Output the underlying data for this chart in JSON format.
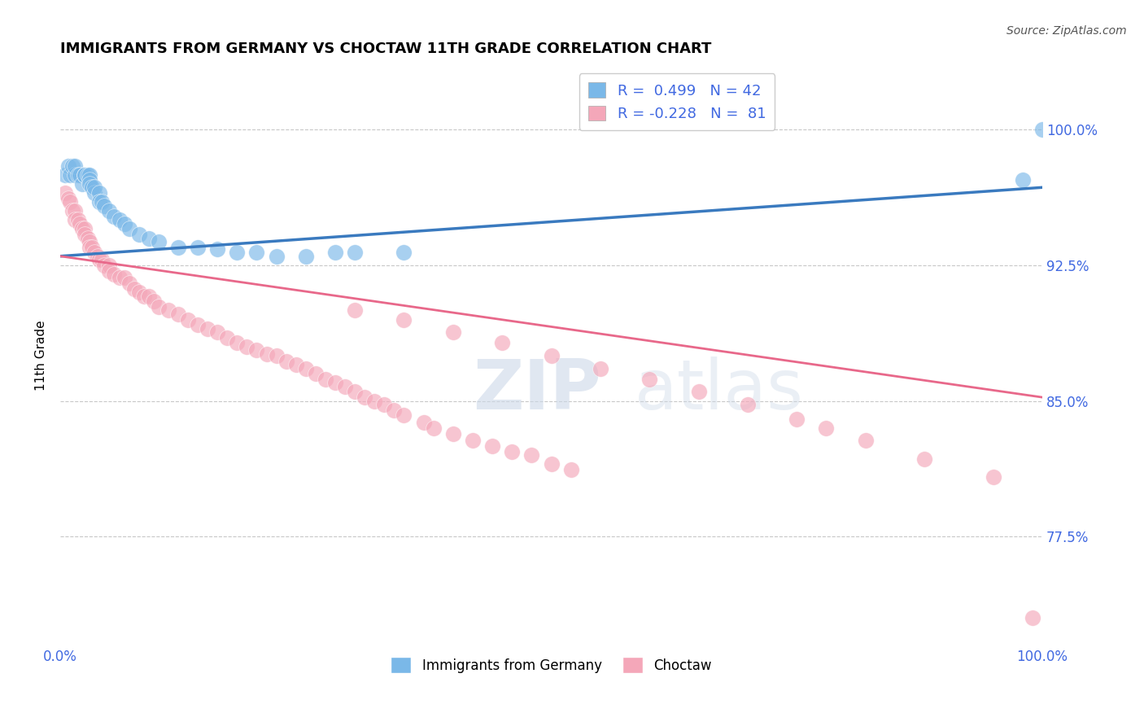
{
  "title": "IMMIGRANTS FROM GERMANY VS CHOCTAW 11TH GRADE CORRELATION CHART",
  "source_text": "Source: ZipAtlas.com",
  "ylabel": "11th Grade",
  "watermark_zip": "ZIP",
  "watermark_atlas": "atlas",
  "xlim": [
    0.0,
    1.0
  ],
  "ylim": [
    0.715,
    1.035
  ],
  "yticks": [
    0.775,
    0.85,
    0.925,
    1.0
  ],
  "ytick_labels": [
    "77.5%",
    "85.0%",
    "92.5%",
    "100.0%"
  ],
  "xtick_labels": [
    "0.0%",
    "100.0%"
  ],
  "xticks": [
    0.0,
    1.0
  ],
  "blue_R": 0.499,
  "blue_N": 42,
  "pink_R": -0.228,
  "pink_N": 81,
  "blue_color": "#7ab8e8",
  "pink_color": "#f4a7b9",
  "blue_line_color": "#3a7abf",
  "pink_line_color": "#e8688a",
  "legend_label_blue": "Immigrants from Germany",
  "legend_label_pink": "Choctaw",
  "title_fontsize": 13,
  "axis_color": "#4169e1",
  "grid_color": "#c8c8c8",
  "background_color": "#ffffff",
  "blue_line_x0": 0.0,
  "blue_line_x1": 1.0,
  "blue_line_y0": 0.93,
  "blue_line_y1": 0.968,
  "pink_line_x0": 0.0,
  "pink_line_x1": 1.0,
  "pink_line_y0": 0.93,
  "pink_line_y1": 0.852,
  "blue_scatter_x": [
    0.005,
    0.008,
    0.01,
    0.012,
    0.015,
    0.015,
    0.018,
    0.02,
    0.022,
    0.025,
    0.025,
    0.028,
    0.03,
    0.03,
    0.03,
    0.032,
    0.035,
    0.035,
    0.04,
    0.04,
    0.042,
    0.045,
    0.05,
    0.055,
    0.06,
    0.065,
    0.07,
    0.08,
    0.09,
    0.1,
    0.12,
    0.14,
    0.16,
    0.18,
    0.2,
    0.22,
    0.25,
    0.28,
    0.3,
    0.35,
    0.98,
    1.0
  ],
  "blue_scatter_y": [
    0.975,
    0.98,
    0.975,
    0.98,
    0.975,
    0.98,
    0.975,
    0.975,
    0.97,
    0.975,
    0.975,
    0.975,
    0.975,
    0.972,
    0.97,
    0.968,
    0.965,
    0.968,
    0.965,
    0.96,
    0.96,
    0.958,
    0.955,
    0.952,
    0.95,
    0.948,
    0.945,
    0.942,
    0.94,
    0.938,
    0.935,
    0.935,
    0.934,
    0.932,
    0.932,
    0.93,
    0.93,
    0.932,
    0.932,
    0.932,
    0.972,
    1.0
  ],
  "pink_scatter_x": [
    0.005,
    0.008,
    0.01,
    0.012,
    0.015,
    0.015,
    0.018,
    0.02,
    0.022,
    0.025,
    0.025,
    0.028,
    0.03,
    0.03,
    0.032,
    0.035,
    0.038,
    0.04,
    0.042,
    0.045,
    0.05,
    0.05,
    0.055,
    0.06,
    0.065,
    0.07,
    0.075,
    0.08,
    0.085,
    0.09,
    0.095,
    0.1,
    0.11,
    0.12,
    0.13,
    0.14,
    0.15,
    0.16,
    0.17,
    0.18,
    0.19,
    0.2,
    0.21,
    0.22,
    0.23,
    0.24,
    0.25,
    0.26,
    0.27,
    0.28,
    0.29,
    0.3,
    0.31,
    0.32,
    0.33,
    0.34,
    0.35,
    0.37,
    0.38,
    0.4,
    0.42,
    0.44,
    0.46,
    0.48,
    0.5,
    0.52,
    0.3,
    0.35,
    0.4,
    0.45,
    0.5,
    0.55,
    0.6,
    0.65,
    0.7,
    0.75,
    0.78,
    0.82,
    0.88,
    0.95,
    0.99
  ],
  "pink_scatter_y": [
    0.965,
    0.962,
    0.96,
    0.955,
    0.955,
    0.95,
    0.95,
    0.948,
    0.945,
    0.945,
    0.942,
    0.94,
    0.938,
    0.935,
    0.935,
    0.932,
    0.93,
    0.928,
    0.928,
    0.925,
    0.925,
    0.922,
    0.92,
    0.918,
    0.918,
    0.915,
    0.912,
    0.91,
    0.908,
    0.908,
    0.905,
    0.902,
    0.9,
    0.898,
    0.895,
    0.892,
    0.89,
    0.888,
    0.885,
    0.882,
    0.88,
    0.878,
    0.876,
    0.875,
    0.872,
    0.87,
    0.868,
    0.865,
    0.862,
    0.86,
    0.858,
    0.855,
    0.852,
    0.85,
    0.848,
    0.845,
    0.842,
    0.838,
    0.835,
    0.832,
    0.828,
    0.825,
    0.822,
    0.82,
    0.815,
    0.812,
    0.9,
    0.895,
    0.888,
    0.882,
    0.875,
    0.868,
    0.862,
    0.855,
    0.848,
    0.84,
    0.835,
    0.828,
    0.818,
    0.808,
    0.73
  ]
}
